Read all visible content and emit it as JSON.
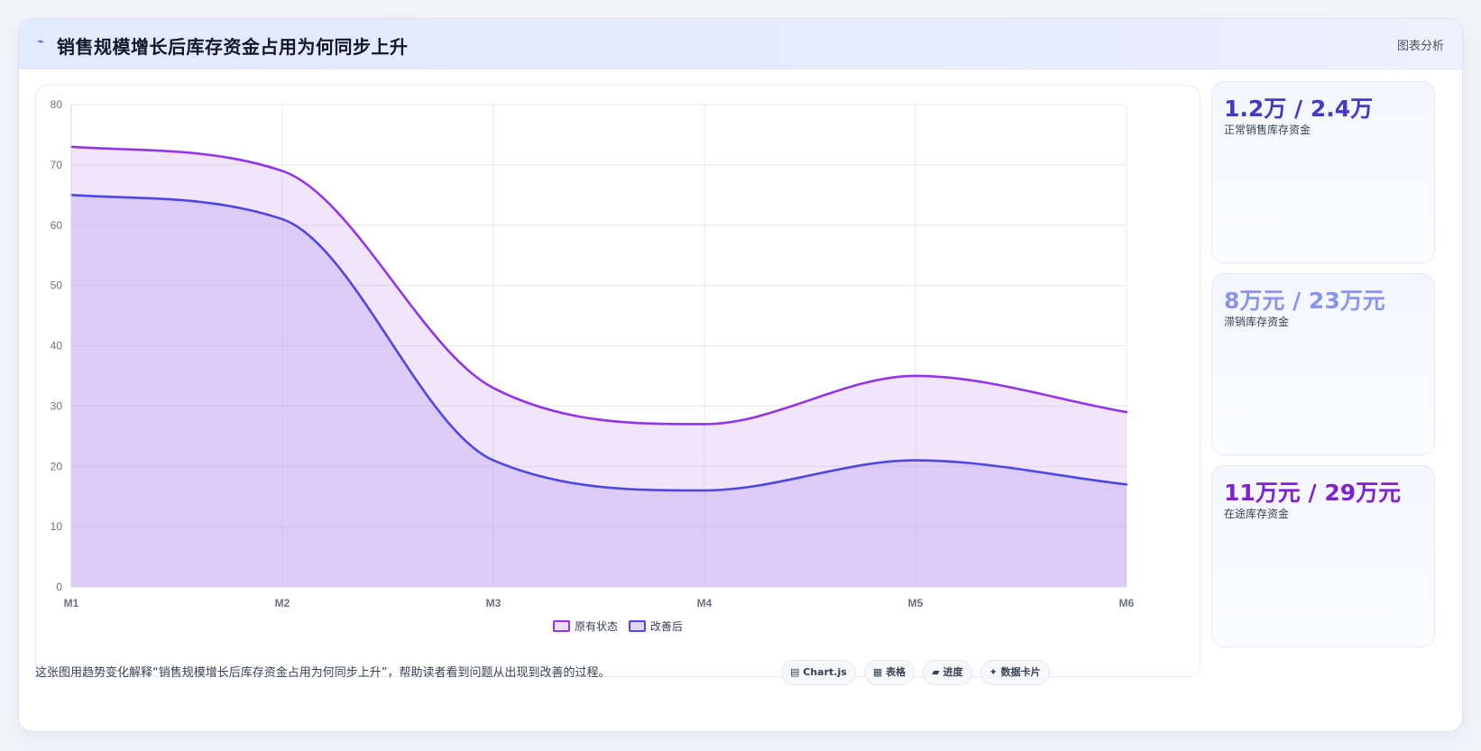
{
  "header": {
    "icon": "chart-line-icon",
    "icon_glyph": "⌁",
    "title": "销售规模增长后库存资金占用为何同步上升",
    "meta": "图表分析"
  },
  "colors": {
    "original": "#9333ea",
    "improved": "#4f46e5",
    "original_fill": "rgba(200,160,240,0.28)",
    "improved_fill": "rgba(196,170,242,0.45)"
  },
  "chart_data": {
    "type": "area",
    "categories": [
      "M1",
      "M2",
      "M3",
      "M4",
      "M5",
      "M6"
    ],
    "series": [
      {
        "name": "原有状态",
        "values": [
          73,
          69,
          33,
          27,
          35,
          29
        ]
      },
      {
        "name": "改善后",
        "values": [
          65,
          61,
          21,
          16,
          21,
          17
        ]
      }
    ],
    "yticks": [
      "0",
      "10",
      "20",
      "30",
      "40",
      "50",
      "60",
      "70",
      "80"
    ],
    "ylim": [
      0,
      80
    ],
    "grid": true,
    "legend_position": "bottom"
  },
  "cards": [
    {
      "value": "1.2万 / 2.4万",
      "label": "正常销售库存资金",
      "color": "#4338ca"
    },
    {
      "value": "8万元 / 23万元",
      "label": "滞销库存资金",
      "color": "#8b93f0"
    },
    {
      "value": "11万元 / 29万元",
      "label": "在途库存资金",
      "color": "#7e22ce"
    }
  ],
  "footer": {
    "text": "这张图用趋势变化解释“销售规模增长后库存资金占用为何同步上升”，帮助读者看到问题从出现到改善的过程。",
    "tags": [
      {
        "icon": "▤",
        "label": "Chart.js"
      },
      {
        "icon": "▦",
        "label": "表格"
      },
      {
        "icon": "▰",
        "label": "进度"
      },
      {
        "icon": "✦",
        "label": "数据卡片"
      }
    ]
  }
}
